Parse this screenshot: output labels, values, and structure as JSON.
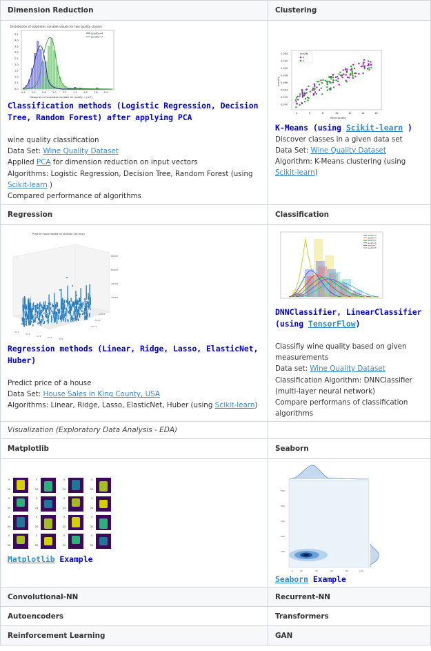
{
  "rows": {
    "h1": {
      "left": "Dimension Reduction",
      "right": "Clustering"
    },
    "pca": {
      "chart_title": "Distribution of sulphates variable values for two quality classes",
      "chart_xlabel": "Histogram of sulphates variable for quality = [4,7]",
      "legend": [
        "quality=4",
        "quality=7"
      ],
      "xticks": [
        "0.4",
        "0.6",
        "0.8",
        "1.0",
        "1.2",
        "1.4",
        "1.6",
        "1.8",
        "2.0"
      ],
      "yticks": [
        "0.0",
        "0.5",
        "1.0",
        "1.5",
        "2.0",
        "2.5",
        "3.0",
        "3.5",
        "4.0",
        "4.5"
      ],
      "title": "Classification methods (Logistic Regression, Decision Tree, Random Forest) after applying PCA",
      "desc": "wine quality classification",
      "dataset_prefix": "Data Set: ",
      "dataset_link": "Wine Quality Dataset",
      "applied_prefix": "Applied ",
      "applied_link": "PCA",
      "applied_suffix": " for dimension reduction on input vectors",
      "algos_prefix": "Algorithms: Logistic Regression, Decision Tree, Random Forest (using ",
      "algos_link": "Scikit-learn",
      "algos_suffix": " )",
      "compared": "Compared performance of algorithms"
    },
    "kmeans": {
      "legend_title": "quality",
      "legend": [
        "6",
        "7"
      ],
      "xlabel": "fixed acidity",
      "ylabel": "density",
      "yticks": [
        "1.004",
        "1.002",
        "1.000",
        "0.998",
        "0.996",
        "0.994",
        "0.992",
        "0.990"
      ],
      "xticks": [
        "4",
        "6",
        "8",
        "10",
        "12",
        "14",
        "16"
      ],
      "title_prefix": "K-Means (using ",
      "title_link": "Scikit-learn",
      "title_suffix": " )",
      "desc": "Discover classes in a given data set",
      "dataset_prefix": "Data Set: ",
      "dataset_link": "Wine Quality Dataset",
      "algo_prefix": "Algorithm: K-Means clustering (using ",
      "algo_link": "Scikit-learn",
      "algo_suffix": ")"
    },
    "h2": {
      "left": "Regression",
      "right": "Classification"
    },
    "regression": {
      "chart_title": "Price of house based on location (lat,long)",
      "title": "Regression methods (Linear, Ridge, Lasso, ElasticNet, Huber)",
      "desc": "Predict price of a house",
      "dataset_prefix": "Data Set: ",
      "dataset_link": "House Sales in King County, USA",
      "algos_prefix": "Algorithms: Linear, Ridge, Lasso, ElasticNet, Huber (using ",
      "algos_link": "Scikit-learn",
      "algos_suffix": ")"
    },
    "dnn": {
      "legend": [
        "quality=3",
        "quality=4",
        "quality=5",
        "quality=6",
        "quality=7",
        "quality=8"
      ],
      "title_main": "DNNClassifier, LinearClassifier",
      "title_prefix": "(using ",
      "title_link": "TensorFlow",
      "title_suffix": ")",
      "desc": "Classifiy wine quality based on given measurements",
      "dataset_prefix": "Data set: ",
      "dataset_link": "Wine Quality Dataset",
      "algo": "Classification Algorithm: DNNClassifier (multi-layer neural network)",
      "compare": "Compare performans of classification algorithms"
    },
    "viz": {
      "left": "Visualization (Exploratory Data Analysis - EDA)",
      "right": ""
    },
    "h3": {
      "left": "Matplotlib",
      "right": "Seaborn"
    },
    "matplotlib": {
      "link": "Matplotlib",
      "suffix": " Example"
    },
    "seaborn": {
      "link": "Seaborn",
      "suffix": " Example"
    },
    "h4": {
      "left": "Convolutional-NN",
      "right": "Recurrent-NN"
    },
    "h5": {
      "left": "Autoencoders",
      "right": "Transformers"
    },
    "h6": {
      "left": "Reinforcement Learning",
      "right": "GAN"
    }
  },
  "colors": {
    "link": "#3b87c4",
    "title": "#0000c8",
    "border": "#cfd4d9"
  }
}
